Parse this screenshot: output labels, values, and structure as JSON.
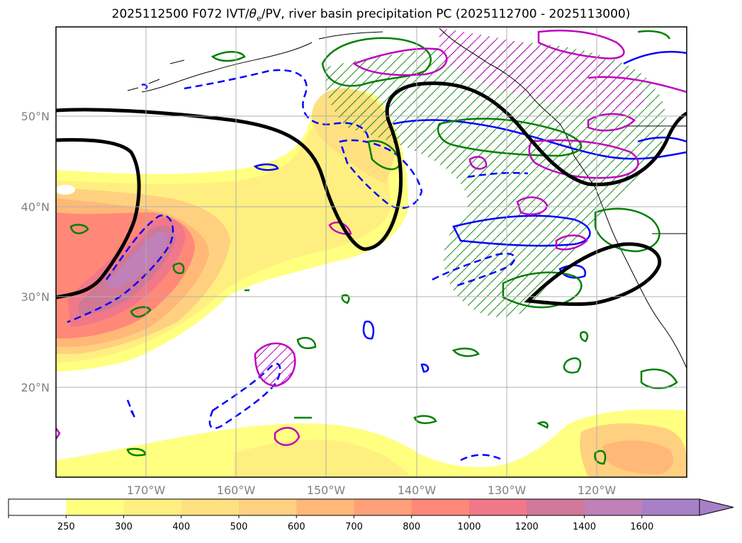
{
  "title": {
    "prefix": "2025112500 F072 IVT/",
    "theta": "θ",
    "subscript": "e",
    "suffix": "/PV, river basin precipitation PC (2025112700 - 2025113000)"
  },
  "map": {
    "region": "North Pacific Ocean and western North America",
    "lat_labels": [
      "50°N",
      "40°N",
      "30°N",
      "20°N"
    ],
    "lon_labels": [
      "170°W",
      "160°W",
      "150°W",
      "140°W",
      "130°W",
      "120°W"
    ],
    "layers": {
      "ivt_fill": "IVT shaded contours",
      "pv_contour_color": "#000000",
      "theta_e_solid_color": "#0000ff",
      "theta_e_dashed_color": "#0000ff",
      "precip_contour_color": "#008000",
      "pc_contour_color": "#c000c0"
    }
  },
  "colorbar": {
    "levels": [
      "250",
      "300",
      "400",
      "500",
      "600",
      "700",
      "800",
      "1000",
      "1200",
      "1400",
      "1600"
    ],
    "colors": [
      "#ffffff",
      "#ffff80",
      "#ffef80",
      "#ffe080",
      "#ffd080",
      "#ffb878",
      "#ffa078",
      "#ff8878",
      "#f07888",
      "#d07898",
      "#c080b8",
      "#a880c8"
    ],
    "extend": "max"
  }
}
